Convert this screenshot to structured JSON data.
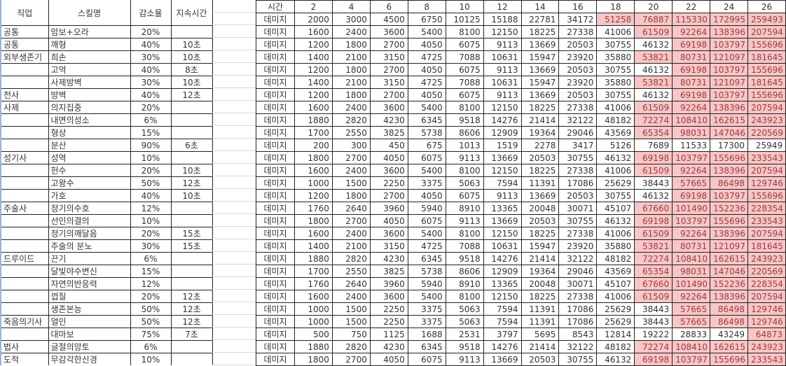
{
  "skills_table": {
    "headers": [
      "직업",
      "스킬명",
      "감소율",
      "지속시간"
    ],
    "rows": [
      [
        "공통",
        "암보+오라",
        "20%",
        ""
      ],
      [
        "공통",
        "깨형",
        "40%",
        "10초"
      ],
      [
        "외부생존기",
        "희손",
        "30%",
        "10초"
      ],
      [
        "",
        "고억",
        "40%",
        "8초"
      ],
      [
        "",
        "사제방벽",
        "30%",
        "10초"
      ],
      [
        "전사",
        "방벽",
        "40%",
        "12초"
      ],
      [
        "사제",
        "의지집중",
        "20%",
        ""
      ],
      [
        "",
        "내면의성소",
        "6%",
        ""
      ],
      [
        "",
        "형상",
        "15%",
        ""
      ],
      [
        "",
        "분산",
        "90%",
        "6초"
      ],
      [
        "성기사",
        "성역",
        "10%",
        ""
      ],
      [
        "",
        "헌수",
        "20%",
        "10초"
      ],
      [
        "",
        "고왕수",
        "50%",
        "12초"
      ],
      [
        "",
        "가호",
        "40%",
        "10초"
      ],
      [
        "주술사",
        "정기의수호",
        "12%",
        ""
      ],
      [
        "",
        "선인의결의",
        "10%",
        ""
      ],
      [
        "",
        "정기의깨달음",
        "20%",
        "15초"
      ],
      [
        "",
        "주술의 분노",
        "30%",
        "15초"
      ],
      [
        "드루이드",
        "끈기",
        "6%",
        ""
      ],
      [
        "",
        "달빛야수변신",
        "15%",
        ""
      ],
      [
        "",
        "자연의반응력",
        "12%",
        ""
      ],
      [
        "",
        "껍질",
        "20%",
        "12초"
      ],
      [
        "",
        "생존본능",
        "50%",
        "12초"
      ],
      [
        "죽음의기사",
        "얼인",
        "50%",
        "12초"
      ],
      [
        "",
        "대마보",
        "75%",
        "7초"
      ],
      [
        "법사",
        "글절의망토",
        "6%",
        ""
      ],
      [
        "도적",
        "무감각한신경",
        "10%",
        ""
      ]
    ]
  },
  "damage_table": {
    "header_label": "시간",
    "times": [
      "2",
      "4",
      "6",
      "8",
      "10",
      "12",
      "14",
      "16",
      "18",
      "20",
      "22",
      "24",
      "26"
    ],
    "row_label": "데미지",
    "rows": [
      [
        2000,
        3000,
        4500,
        6750,
        10125,
        15188,
        22781,
        34172,
        51258,
        76887,
        115330,
        172995,
        259493
      ],
      [
        1600,
        2400,
        3600,
        5400,
        8100,
        12150,
        18225,
        27338,
        41006,
        61509,
        92264,
        138396,
        207594
      ],
      [
        1200,
        1800,
        2700,
        4050,
        6075,
        9113,
        13669,
        20503,
        30755,
        46132,
        69198,
        103797,
        155696
      ],
      [
        1400,
        2100,
        3150,
        4725,
        7088,
        10631,
        15947,
        23920,
        35880,
        53821,
        80731,
        121097,
        181645
      ],
      [
        1200,
        1800,
        2700,
        4050,
        6075,
        9113,
        13669,
        20503,
        30755,
        46132,
        69198,
        103797,
        155696
      ],
      [
        1400,
        2100,
        3150,
        4725,
        7088,
        10631,
        15947,
        23920,
        35880,
        53821,
        80731,
        121097,
        181645
      ],
      [
        1200,
        1800,
        2700,
        4050,
        6075,
        9113,
        13669,
        20503,
        30755,
        46132,
        69198,
        103797,
        155696
      ],
      [
        1600,
        2400,
        3600,
        5400,
        8100,
        12150,
        18225,
        27338,
        41006,
        61509,
        92264,
        138396,
        207594
      ],
      [
        1880,
        2820,
        4230,
        6345,
        9518,
        14276,
        21414,
        32122,
        48182,
        72274,
        108410,
        162615,
        243923
      ],
      [
        1700,
        2550,
        3825,
        5738,
        8606,
        12909,
        19364,
        29046,
        43569,
        65354,
        98031,
        147046,
        220569
      ],
      [
        200,
        300,
        450,
        675,
        1013,
        1519,
        2278,
        3417,
        5126,
        7689,
        11533,
        17300,
        25949
      ],
      [
        1800,
        2700,
        4050,
        6075,
        9113,
        13669,
        20503,
        30755,
        46132,
        69198,
        103797,
        155696,
        233543
      ],
      [
        1600,
        2400,
        3600,
        5400,
        8100,
        12150,
        18225,
        27338,
        41006,
        61509,
        92264,
        138396,
        207594
      ],
      [
        1000,
        1500,
        2250,
        3375,
        5063,
        7594,
        11391,
        17086,
        25629,
        38443,
        57665,
        86498,
        129746
      ],
      [
        1200,
        1800,
        2700,
        4050,
        6075,
        9113,
        13669,
        20503,
        30755,
        46132,
        69198,
        103797,
        155696
      ],
      [
        1760,
        2640,
        3960,
        5940,
        8910,
        13365,
        20048,
        30071,
        45107,
        67660,
        101490,
        152236,
        228354
      ],
      [
        1800,
        2700,
        4050,
        6075,
        9113,
        13669,
        20503,
        30755,
        46132,
        69198,
        103797,
        155696,
        233543
      ],
      [
        1600,
        2400,
        3600,
        5400,
        8100,
        12150,
        18225,
        27338,
        41006,
        61509,
        92264,
        138396,
        207594
      ],
      [
        1400,
        2100,
        3150,
        4725,
        7088,
        10631,
        15947,
        23920,
        35880,
        53821,
        80731,
        121097,
        181645
      ],
      [
        1880,
        2820,
        4230,
        6345,
        9518,
        14276,
        21414,
        32122,
        48182,
        72274,
        108410,
        162615,
        243923
      ],
      [
        1700,
        2550,
        3825,
        5738,
        8606,
        12909,
        19364,
        29046,
        43569,
        65354,
        98031,
        147046,
        220569
      ],
      [
        1760,
        2640,
        3960,
        5940,
        8910,
        13365,
        20048,
        30071,
        45107,
        67660,
        101490,
        152236,
        228354
      ],
      [
        1600,
        2400,
        3600,
        5400,
        8100,
        12150,
        18225,
        27338,
        41006,
        61509,
        92264,
        138396,
        207594
      ],
      [
        1000,
        1500,
        2250,
        3375,
        5063,
        7594,
        11391,
        17086,
        25629,
        38443,
        57665,
        86498,
        129746
      ],
      [
        1000,
        1500,
        2250,
        3375,
        5063,
        7594,
        11391,
        17086,
        25629,
        38443,
        57665,
        86498,
        129746
      ],
      [
        500,
        750,
        1125,
        1688,
        2531,
        3797,
        5695,
        8543,
        12814,
        19222,
        28833,
        43249,
        64873
      ],
      [
        1880,
        2820,
        4230,
        6345,
        9518,
        14276,
        21414,
        32122,
        48182,
        72274,
        108410,
        162615,
        243923
      ],
      [
        1800,
        2700,
        4050,
        6075,
        9113,
        13669,
        20503,
        30755,
        46132,
        69198,
        103797,
        155696,
        233543
      ]
    ],
    "highlight_fill": "#f7c6c6",
    "highlight_text": "#a33a3a"
  }
}
